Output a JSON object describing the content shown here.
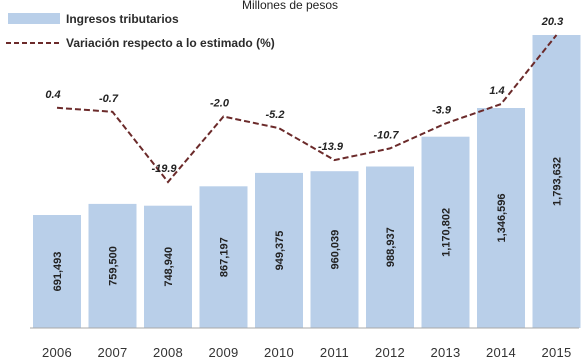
{
  "chart_data": {
    "type": "bar",
    "title": "Millones de pesos",
    "categories": [
      "2006",
      "2007",
      "2008",
      "2009",
      "2010",
      "2011",
      "2012",
      "2013",
      "2014",
      "2015"
    ],
    "series": [
      {
        "name": "Ingresos tributarios",
        "type": "bar",
        "values": [
          691493,
          759500,
          748940,
          867197,
          949375,
          960039,
          988937,
          1170802,
          1346596,
          1793632
        ],
        "labels": [
          "691,493",
          "759,500",
          "748,940",
          "867,197",
          "949,375",
          "960,039",
          "988,937",
          "1,170,802",
          "1,346,596",
          "1,793,632"
        ]
      },
      {
        "name": "Variación respecto a lo estimado (%)",
        "type": "line",
        "style": "dashed",
        "values": [
          0.4,
          -0.7,
          -19.9,
          -2.0,
          -5.2,
          -13.9,
          -10.7,
          -3.9,
          1.4,
          20.3
        ],
        "labels": [
          "0.4",
          "-0.7",
          "-19.9",
          "-2.0",
          "-5.2",
          "-13.9",
          "-10.7",
          "-3.9",
          "1.4",
          "20.3"
        ]
      }
    ],
    "colors": {
      "bar": "#b9cfe9",
      "line": "#6b2a2a",
      "axis": "#a9a9a9"
    },
    "legend_position": "top-left",
    "grid": false
  }
}
